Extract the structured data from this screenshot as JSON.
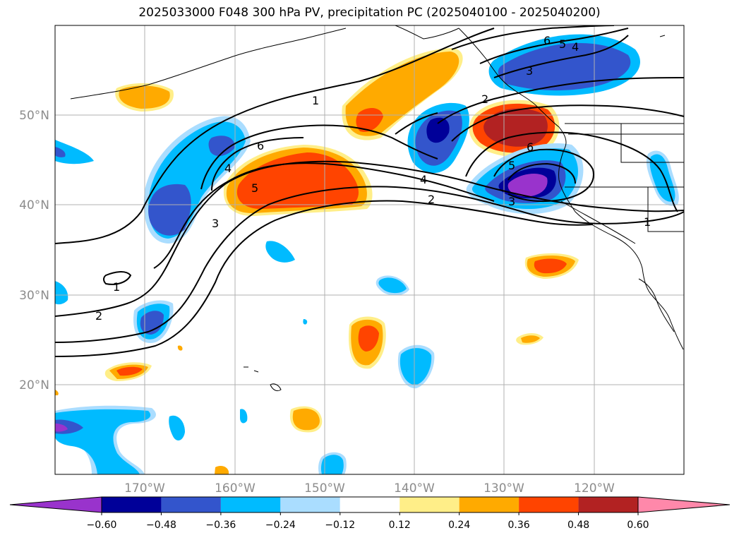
{
  "title": "2025033000 F048 300 hPa PV, precipitation PC (2025040100 - 2025040200)",
  "map": {
    "longitude_labels": [
      "170°W",
      "160°W",
      "150°W",
      "140°W",
      "130°W",
      "120°W"
    ],
    "latitude_labels": [
      "50°N",
      "40°N",
      "30°N",
      "20°N"
    ],
    "grid": true,
    "contour_labels": [
      {
        "text": "1"
      },
      {
        "text": "6"
      },
      {
        "text": "5"
      },
      {
        "text": "4"
      },
      {
        "text": "3"
      },
      {
        "text": "2"
      },
      {
        "text": "1"
      },
      {
        "text": "6"
      },
      {
        "text": "5"
      },
      {
        "text": "4"
      },
      {
        "text": "3"
      },
      {
        "text": "2"
      },
      {
        "text": "6"
      },
      {
        "text": "5"
      },
      {
        "text": "3"
      },
      {
        "text": "2"
      },
      {
        "text": "4"
      },
      {
        "text": "1"
      },
      {
        "text": "1"
      },
      {
        "text": "2"
      }
    ]
  },
  "colorbar": {
    "tick_labels": [
      "−0.60",
      "−0.48",
      "−0.36",
      "−0.24",
      "−0.12",
      "0.12",
      "0.24",
      "0.36",
      "0.48",
      "0.60"
    ],
    "colors": [
      "#9933cc",
      "#000099",
      "#3355cc",
      "#00bbff",
      "#aaddff",
      "#ffffff",
      "#ffee88",
      "#ffaa00",
      "#ff4400",
      "#b22222",
      "#ff88aa"
    ]
  }
}
